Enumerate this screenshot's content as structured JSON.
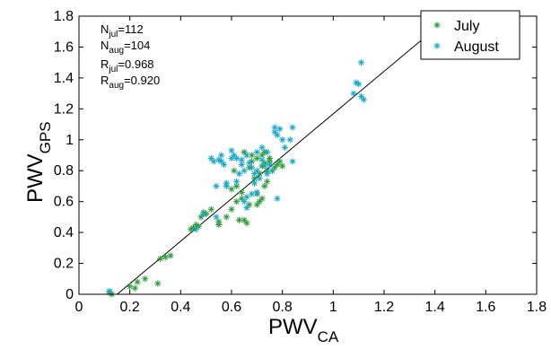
{
  "chart_data": {
    "type": "scatter",
    "xlabel": {
      "main": "PWV",
      "sub": "CA"
    },
    "ylabel": {
      "main": "PWV",
      "sub": "GPS"
    },
    "xlim": [
      0,
      1.8
    ],
    "ylim": [
      0,
      1.8
    ],
    "xticks": [
      "0",
      "0.2",
      "0.4",
      "0.6",
      "0.8",
      "1",
      "1.2",
      "1.4",
      "1.6",
      "1.8"
    ],
    "yticks": [
      "0",
      "0.2",
      "0.4",
      "0.6",
      "0.8",
      "1",
      "1.2",
      "1.4",
      "1.6",
      "1.8"
    ],
    "grid": false,
    "legend_position": "top-right",
    "colors": {
      "july": "#2e9a3c",
      "august": "#1aa6c8",
      "line": "#000000"
    },
    "annotations": [
      {
        "main": "N",
        "sub": "jul",
        "value": "=112"
      },
      {
        "main": "N",
        "sub": "aug",
        "value": "=104"
      },
      {
        "main": "R",
        "sub": "jul",
        "value": "=0.968"
      },
      {
        "main": "R",
        "sub": "aug",
        "value": "=0.920"
      }
    ],
    "fit_line": {
      "x": [
        0.15,
        1.46
      ],
      "y": [
        0.0,
        1.8
      ]
    },
    "series": [
      {
        "name": "July",
        "color": "#2e9a3c",
        "marker": "asterisk",
        "x": [
          0.12,
          0.12,
          0.13,
          0.2,
          0.22,
          0.23,
          0.26,
          0.31,
          0.32,
          0.34,
          0.36,
          0.44,
          0.45,
          0.46,
          0.47,
          0.48,
          0.49,
          0.5,
          0.52,
          0.55,
          0.58,
          0.6,
          0.62,
          0.62,
          0.64,
          0.65,
          0.66,
          0.67,
          0.67,
          0.68,
          0.68,
          0.69,
          0.7,
          0.7,
          0.71,
          0.71,
          0.72,
          0.72,
          0.72,
          0.73,
          0.73,
          0.74,
          0.74,
          0.75,
          0.75,
          0.76,
          0.77,
          0.78,
          0.79,
          0.8,
          0.55,
          0.6,
          0.63,
          0.65,
          0.69,
          0.7,
          0.73,
          0.61,
          0.64,
          0.66
        ],
        "y": [
          0.01,
          0.02,
          0.0,
          0.05,
          0.04,
          0.08,
          0.1,
          0.07,
          0.23,
          0.24,
          0.25,
          0.42,
          0.43,
          0.45,
          0.44,
          0.5,
          0.53,
          0.52,
          0.55,
          0.47,
          0.5,
          0.68,
          0.6,
          0.7,
          0.62,
          0.48,
          0.46,
          0.58,
          0.82,
          0.86,
          0.9,
          0.72,
          0.65,
          0.88,
          0.6,
          0.78,
          0.62,
          0.83,
          0.9,
          0.7,
          0.85,
          0.8,
          0.73,
          0.88,
          0.86,
          0.8,
          0.82,
          0.84,
          0.86,
          0.83,
          0.45,
          0.55,
          0.48,
          0.92,
          0.75,
          0.58,
          0.92,
          0.8,
          0.66,
          0.9
        ]
      },
      {
        "name": "August",
        "color": "#1aa6c8",
        "marker": "asterisk",
        "x": [
          0.12,
          0.46,
          0.49,
          0.52,
          0.53,
          0.54,
          0.55,
          0.56,
          0.57,
          0.58,
          0.6,
          0.61,
          0.62,
          0.63,
          0.64,
          0.65,
          0.65,
          0.66,
          0.67,
          0.68,
          0.69,
          0.7,
          0.7,
          0.71,
          0.72,
          0.73,
          0.74,
          0.75,
          0.76,
          0.77,
          0.77,
          0.78,
          0.79,
          0.8,
          0.81,
          0.83,
          0.84,
          0.84,
          0.54,
          0.58,
          0.62,
          0.66,
          0.68,
          0.72,
          0.56,
          0.6,
          0.64,
          0.7,
          0.74,
          0.78,
          1.08,
          1.09,
          1.1,
          1.11,
          1.12,
          1.11,
          0.66,
          0.69
        ],
        "y": [
          0.02,
          0.42,
          0.52,
          0.88,
          0.86,
          0.7,
          0.87,
          0.86,
          0.84,
          0.72,
          0.93,
          0.9,
          0.88,
          0.78,
          0.84,
          0.8,
          0.6,
          0.9,
          0.85,
          0.82,
          0.78,
          0.8,
          0.92,
          0.75,
          0.87,
          0.83,
          0.78,
          0.84,
          0.8,
          1.08,
          1.05,
          1.03,
          1.07,
          1.0,
          0.95,
          1.0,
          1.08,
          0.86,
          0.5,
          0.7,
          0.73,
          0.56,
          0.65,
          0.95,
          0.9,
          0.88,
          0.87,
          0.66,
          0.92,
          0.62,
          1.3,
          1.37,
          1.36,
          1.28,
          1.26,
          1.5,
          0.63,
          0.72
        ]
      }
    ]
  }
}
